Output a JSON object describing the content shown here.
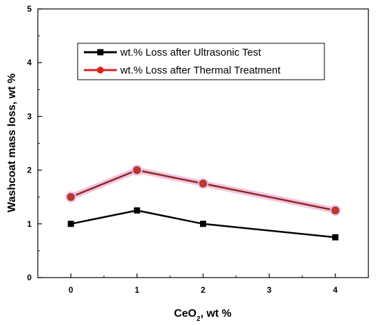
{
  "chart_data": {
    "type": "line",
    "x": [
      0,
      1,
      2,
      4
    ],
    "xlim": [
      -0.5,
      4.5
    ],
    "ylim": [
      0,
      5
    ],
    "xticks": [
      "0",
      "1",
      "2",
      "3",
      "4"
    ],
    "yticks": [
      "0",
      "1",
      "2",
      "3",
      "4",
      "5"
    ],
    "xlabel_main": "CeO",
    "xlabel_sub": "2",
    "xlabel_rest": ", wt %",
    "ylabel": "Washcoat mass loss, wt %",
    "grid": false,
    "legend_position": "top-center",
    "series": [
      {
        "name": "wt.% Loss after Ultrasonic Test",
        "values": [
          1.0,
          1.25,
          1.0,
          0.75
        ],
        "color": "#000000",
        "marker": "square"
      },
      {
        "name": "wt.% Loss after Thermal Treatment",
        "values": [
          1.5,
          2.0,
          1.75,
          1.25
        ],
        "color": "#8b2c1a",
        "marker_color": "#c0392b",
        "glow_color": "#f0b8e0",
        "legend_color": "#e0201b",
        "marker": "circle"
      }
    ]
  }
}
